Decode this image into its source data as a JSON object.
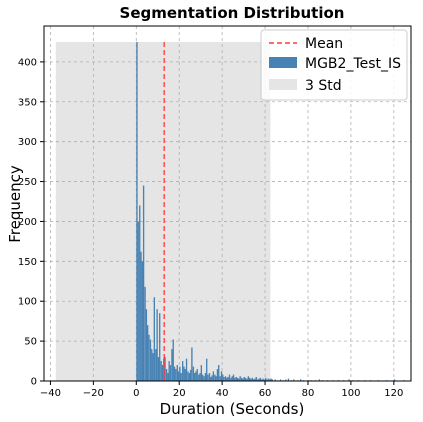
{
  "chart_data": {
    "type": "bar",
    "title": "Segmentation Distribution",
    "xlabel": "Duration (Seconds)",
    "ylabel": "Frequency",
    "xlim": [
      -43,
      128
    ],
    "ylim": [
      0,
      445
    ],
    "xticks": [
      -40,
      -20,
      0,
      20,
      40,
      60,
      80,
      100,
      120
    ],
    "yticks": [
      0,
      50,
      100,
      150,
      200,
      250,
      300,
      350,
      400
    ],
    "grid": true,
    "legend_position": "top-right",
    "mean": 13,
    "std_band": {
      "x0": -37.5,
      "x1": 62.5,
      "y_top": 425
    },
    "series": [
      {
        "name": "MGB2_Test_IS",
        "bin_width": 0.625,
        "bins": [
          [
            0.0,
            425
          ],
          [
            0.6,
            200
          ],
          [
            1.3,
            220
          ],
          [
            1.9,
            162
          ],
          [
            2.5,
            150
          ],
          [
            3.1,
            245
          ],
          [
            3.8,
            118
          ],
          [
            4.4,
            90
          ],
          [
            5.0,
            70
          ],
          [
            5.6,
            58
          ],
          [
            6.3,
            52
          ],
          [
            6.9,
            40
          ],
          [
            7.5,
            35
          ],
          [
            8.1,
            105
          ],
          [
            8.8,
            40
          ],
          [
            9.4,
            90
          ],
          [
            10.0,
            30
          ],
          [
            10.6,
            85
          ],
          [
            11.3,
            25
          ],
          [
            11.9,
            20
          ],
          [
            12.5,
            28
          ],
          [
            13.1,
            30
          ],
          [
            13.8,
            15
          ],
          [
            14.4,
            10
          ],
          [
            15.0,
            25
          ],
          [
            15.6,
            20
          ],
          [
            16.3,
            40
          ],
          [
            16.9,
            52
          ],
          [
            17.5,
            18
          ],
          [
            18.1,
            15
          ],
          [
            18.8,
            20
          ],
          [
            19.4,
            12
          ],
          [
            20.0,
            18
          ],
          [
            20.6,
            10
          ],
          [
            21.3,
            25
          ],
          [
            21.9,
            18
          ],
          [
            22.5,
            15
          ],
          [
            23.1,
            28
          ],
          [
            23.8,
            12
          ],
          [
            24.4,
            10
          ],
          [
            25.0,
            14
          ],
          [
            25.6,
            42
          ],
          [
            26.3,
            18
          ],
          [
            26.9,
            10
          ],
          [
            27.5,
            12
          ],
          [
            28.1,
            15
          ],
          [
            28.8,
            8
          ],
          [
            29.4,
            10
          ],
          [
            30.0,
            20
          ],
          [
            30.6,
            8
          ],
          [
            31.3,
            6
          ],
          [
            31.9,
            10
          ],
          [
            32.5,
            28
          ],
          [
            33.1,
            8
          ],
          [
            33.8,
            10
          ],
          [
            34.4,
            5
          ],
          [
            35.0,
            7
          ],
          [
            35.6,
            12
          ],
          [
            36.3,
            8
          ],
          [
            36.9,
            6
          ],
          [
            37.5,
            15
          ],
          [
            38.1,
            20
          ],
          [
            38.8,
            6
          ],
          [
            39.4,
            12
          ],
          [
            40.0,
            8
          ],
          [
            40.6,
            5
          ],
          [
            41.3,
            6
          ],
          [
            41.9,
            4
          ],
          [
            42.5,
            5
          ],
          [
            43.1,
            8
          ],
          [
            43.8,
            4
          ],
          [
            44.4,
            6
          ],
          [
            45.0,
            8
          ],
          [
            45.6,
            4
          ],
          [
            46.3,
            5
          ],
          [
            46.9,
            4
          ],
          [
            47.5,
            3
          ],
          [
            48.1,
            6
          ],
          [
            48.8,
            4
          ],
          [
            49.4,
            3
          ],
          [
            50.0,
            5
          ],
          [
            50.6,
            4
          ],
          [
            51.3,
            3
          ],
          [
            51.9,
            6
          ],
          [
            52.5,
            4
          ],
          [
            53.1,
            3
          ],
          [
            53.8,
            4
          ],
          [
            54.4,
            2
          ],
          [
            55.0,
            3
          ],
          [
            55.6,
            5
          ],
          [
            56.3,
            2
          ],
          [
            56.9,
            3
          ],
          [
            57.5,
            4
          ],
          [
            58.1,
            2
          ],
          [
            58.8,
            3
          ],
          [
            59.4,
            2
          ],
          [
            60.0,
            4
          ],
          [
            60.6,
            2
          ],
          [
            61.3,
            3
          ],
          [
            61.9,
            2
          ],
          [
            62.5,
            3
          ],
          [
            63.1,
            2
          ],
          [
            64.4,
            2
          ],
          [
            65.6,
            1
          ],
          [
            66.9,
            2
          ],
          [
            68.1,
            1
          ],
          [
            69.4,
            2
          ],
          [
            70.6,
            3
          ],
          [
            71.9,
            1
          ],
          [
            73.1,
            2
          ],
          [
            75.0,
            1
          ],
          [
            76.3,
            2
          ],
          [
            77.5,
            1
          ],
          [
            80.0,
            1
          ],
          [
            81.3,
            1
          ],
          [
            83.1,
            1
          ],
          [
            85.0,
            2
          ],
          [
            86.3,
            1
          ],
          [
            88.8,
            1
          ],
          [
            91.3,
            1
          ],
          [
            93.8,
            1
          ],
          [
            96.3,
            1
          ],
          [
            98.8,
            2
          ],
          [
            100.6,
            1
          ],
          [
            103.1,
            1
          ],
          [
            106.3,
            1
          ],
          [
            108.8,
            1
          ],
          [
            112.5,
            1
          ],
          [
            116.3,
            1
          ],
          [
            120.0,
            2
          ],
          [
            124.4,
            1
          ]
        ]
      }
    ],
    "legend": {
      "mean_label": "Mean",
      "hist_label": "MGB2_Test_IS",
      "std_label": "3 Std"
    },
    "colors": {
      "bars": "#4682b4",
      "mean": "#ff3b3b",
      "std_band": "#e5e5e5",
      "grid": "#b0b0b0"
    }
  }
}
